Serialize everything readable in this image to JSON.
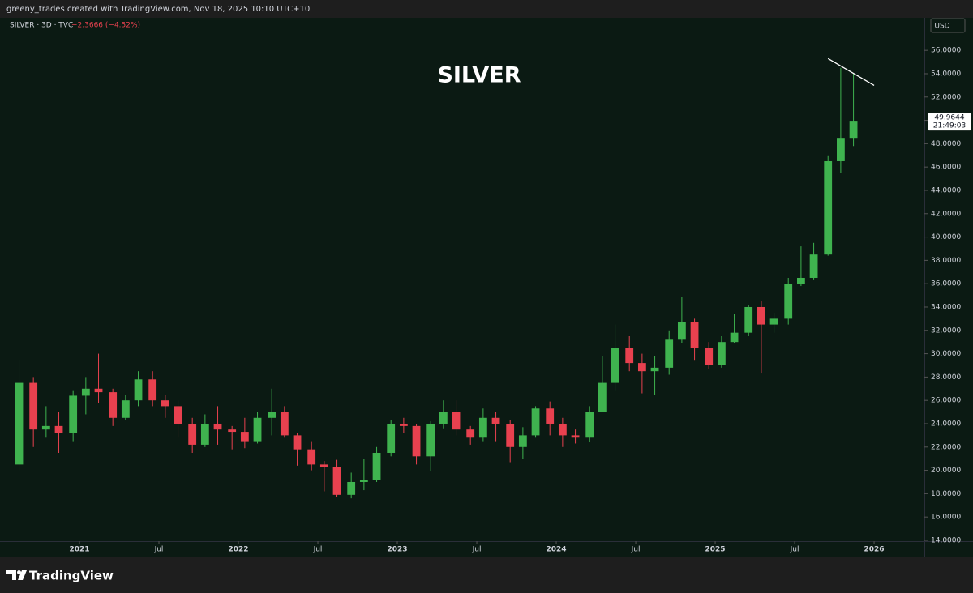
{
  "header": {
    "text": "greeny_trades created with TradingView.com, Nov 18, 2025 10:10 UTC+10"
  },
  "footer": {
    "brand": "TradingView"
  },
  "chart_data": {
    "type": "candlestick",
    "title": "SILVER",
    "symbol": "SILVER · 3D · TVC",
    "change_label": "−2.3666 (−4.52%)",
    "currency": "USD",
    "last_price": 49.9644,
    "countdown": "21:49:03",
    "up_color": "#3fb34f",
    "down_color": "#e8414f",
    "grid": false,
    "xlim": [
      2020.5,
      2026.316
    ],
    "ylim": [
      13.93,
      58.79
    ],
    "xticks": [
      2021,
      {
        "value": 2021.5,
        "label": "Jul"
      },
      2022,
      {
        "value": 2022.5,
        "label": "Jul"
      },
      2023,
      {
        "value": 2023.5,
        "label": "Jul"
      },
      2024,
      {
        "value": 2024.5,
        "label": "Jul"
      },
      2025,
      {
        "value": 2025.5,
        "label": "Jul"
      },
      2026
    ],
    "yticks": [
      {
        "value": 14,
        "label": "14.0000"
      },
      {
        "value": 16,
        "label": "16.0000"
      },
      {
        "value": 18,
        "label": "18.0000"
      },
      {
        "value": 20,
        "label": "20.0000"
      },
      {
        "value": 22,
        "label": "22.0000"
      },
      {
        "value": 24,
        "label": "24.0000"
      },
      {
        "value": 26,
        "label": "26.0000"
      },
      {
        "value": 28,
        "label": "28.0000"
      },
      {
        "value": 30,
        "label": "30.0000"
      },
      {
        "value": 32,
        "label": "32.0000"
      },
      {
        "value": 34,
        "label": "34.0000"
      },
      {
        "value": 36,
        "label": "36.0000"
      },
      {
        "value": 38,
        "label": "38.0000"
      },
      {
        "value": 40,
        "label": "40.0000"
      },
      {
        "value": 42,
        "label": "42.0000"
      },
      {
        "value": 44,
        "label": "44.0000"
      },
      {
        "value": 46,
        "label": "46.0000"
      },
      {
        "value": 48,
        "label": "48.0000"
      },
      {
        "value": 50,
        "label": "50.0000"
      },
      {
        "value": 52,
        "label": "52.0000"
      },
      {
        "value": 54,
        "label": "54.0000"
      },
      {
        "value": 56,
        "label": "56.0000"
      }
    ],
    "x": [
      2020.62,
      2020.71,
      2020.79,
      2020.87,
      2020.96,
      2021.04,
      2021.12,
      2021.21,
      2021.29,
      2021.37,
      2021.46,
      2021.54,
      2021.62,
      2021.71,
      2021.79,
      2021.87,
      2021.96,
      2022.04,
      2022.12,
      2022.21,
      2022.29,
      2022.37,
      2022.46,
      2022.54,
      2022.62,
      2022.71,
      2022.79,
      2022.87,
      2022.96,
      2023.04,
      2023.12,
      2023.21,
      2023.29,
      2023.37,
      2023.46,
      2023.54,
      2023.62,
      2023.71,
      2023.79,
      2023.87,
      2023.96,
      2024.04,
      2024.12,
      2024.21,
      2024.29,
      2024.37,
      2024.46,
      2024.54,
      2024.62,
      2024.71,
      2024.79,
      2024.87,
      2024.96,
      2025.04,
      2025.12,
      2025.21,
      2025.29,
      2025.37,
      2025.46,
      2025.54,
      2025.62,
      2025.71,
      2025.79,
      2025.87
    ],
    "open": [
      20.5,
      27.5,
      23.5,
      23.8,
      23.2,
      26.4,
      27.0,
      26.7,
      24.5,
      26.0,
      27.8,
      26.0,
      25.5,
      24.0,
      22.2,
      24.0,
      23.5,
      23.3,
      22.5,
      24.5,
      25.0,
      23.0,
      21.8,
      20.5,
      20.3,
      17.9,
      19.0,
      19.2,
      21.5,
      24.0,
      23.8,
      21.2,
      24.0,
      25.0,
      23.5,
      22.8,
      24.5,
      24.0,
      22.0,
      23.0,
      25.3,
      24.0,
      23.0,
      22.8,
      25.0,
      27.5,
      30.5,
      29.2,
      28.5,
      28.8,
      31.2,
      32.7,
      30.5,
      29.0,
      31.0,
      31.8,
      34.0,
      32.5,
      33.0,
      36.0,
      36.5,
      38.5,
      46.5,
      48.5
    ],
    "high": [
      29.5,
      28.0,
      25.5,
      25.0,
      26.8,
      28.0,
      30.0,
      27.0,
      26.5,
      28.5,
      28.5,
      26.5,
      26.0,
      24.5,
      24.8,
      25.5,
      23.8,
      24.5,
      25.0,
      27.0,
      25.5,
      23.2,
      22.5,
      20.8,
      20.9,
      19.8,
      21.0,
      22.0,
      24.3,
      24.5,
      24.0,
      24.2,
      26.0,
      26.0,
      23.8,
      25.3,
      25.0,
      24.3,
      23.7,
      25.5,
      25.9,
      24.5,
      23.5,
      25.5,
      29.8,
      32.5,
      31.5,
      30.0,
      29.8,
      32.0,
      34.9,
      33.0,
      31.0,
      31.5,
      33.4,
      34.2,
      34.5,
      33.5,
      36.5,
      39.2,
      39.5,
      47.0,
      54.5,
      54.0
    ],
    "low": [
      20.0,
      22.0,
      22.8,
      21.5,
      22.5,
      24.8,
      25.8,
      23.8,
      24.3,
      25.5,
      25.5,
      24.5,
      22.8,
      21.5,
      22.0,
      22.2,
      21.8,
      21.9,
      22.3,
      23.0,
      22.8,
      20.4,
      20.0,
      18.2,
      17.7,
      17.6,
      18.3,
      19.0,
      21.2,
      23.2,
      20.5,
      19.9,
      23.6,
      23.0,
      22.2,
      22.5,
      22.5,
      20.7,
      21.0,
      22.8,
      23.0,
      22.0,
      22.3,
      22.4,
      25.0,
      26.8,
      28.5,
      26.6,
      26.5,
      28.2,
      30.9,
      29.4,
      28.7,
      28.8,
      30.9,
      31.5,
      28.3,
      31.8,
      32.5,
      35.8,
      36.3,
      38.4,
      45.5,
      47.8
    ],
    "close": [
      27.5,
      23.5,
      23.8,
      23.2,
      26.4,
      27.0,
      26.7,
      24.5,
      26.0,
      27.8,
      26.0,
      25.5,
      24.0,
      22.2,
      24.0,
      23.5,
      23.3,
      22.5,
      24.5,
      25.0,
      23.0,
      21.8,
      20.5,
      20.3,
      17.9,
      19.0,
      19.2,
      21.5,
      24.0,
      23.8,
      21.2,
      24.0,
      25.0,
      23.5,
      22.8,
      24.5,
      24.0,
      22.0,
      23.0,
      25.3,
      24.0,
      23.0,
      22.8,
      25.0,
      27.5,
      30.5,
      29.2,
      28.5,
      28.8,
      31.2,
      32.7,
      30.5,
      29.0,
      31.0,
      31.8,
      34.0,
      32.5,
      33.0,
      36.0,
      36.5,
      38.5,
      46.5,
      48.5,
      49.9644
    ],
    "trendline": {
      "x": [
        2025.71,
        2026.0
      ],
      "y": [
        55.3,
        53.0
      ],
      "color": "#ffffff"
    }
  }
}
